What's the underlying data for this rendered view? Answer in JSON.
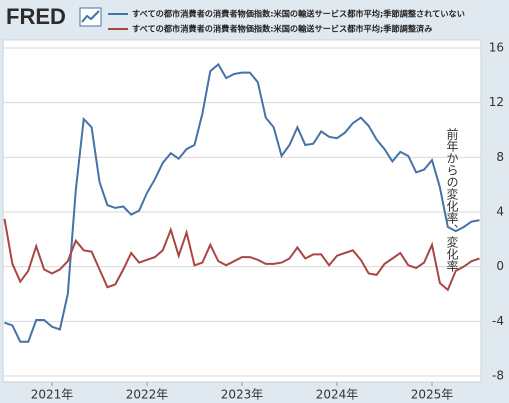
{
  "logo": "FRED",
  "chart_data": {
    "type": "line",
    "y_label": "前年からの変化率、変化率",
    "categories": [
      null,
      null,
      null,
      null,
      null,
      null,
      "2021年",
      null,
      null,
      null,
      null,
      null,
      null,
      null,
      null,
      null,
      null,
      null,
      "2022年",
      null,
      null,
      null,
      null,
      null,
      null,
      null,
      null,
      null,
      null,
      null,
      "2023年",
      null,
      null,
      null,
      null,
      null,
      null,
      null,
      null,
      null,
      null,
      null,
      "2024年",
      null,
      null,
      null,
      null,
      null,
      null,
      null,
      null,
      null,
      null,
      null,
      "2025年",
      null,
      null,
      null,
      null,
      null,
      null
    ],
    "series": [
      {
        "name": "すべての都市消費者の消費者物価指数:米国の輸送サービス都市平均;季節調整されていない",
        "color": "#4572a7",
        "values": [
          -4.1,
          -4.3,
          -5.5,
          -5.5,
          -3.9,
          -3.9,
          -4.4,
          -4.6,
          -2.0,
          5.6,
          10.8,
          10.2,
          6.2,
          4.5,
          4.3,
          4.4,
          3.8,
          4.1,
          5.4,
          6.4,
          7.6,
          8.3,
          7.9,
          8.6,
          8.9,
          11.2,
          14.3,
          14.8,
          13.8,
          14.1,
          14.2,
          14.2,
          13.5,
          10.9,
          10.2,
          8.1,
          8.9,
          10.2,
          8.9,
          9.0,
          9.9,
          9.5,
          9.4,
          9.8,
          10.5,
          10.9,
          10.3,
          9.3,
          8.6,
          7.7,
          8.4,
          8.1,
          6.9,
          7.1,
          7.8,
          5.8,
          2.9,
          2.6,
          2.9,
          3.3,
          3.4
        ]
      },
      {
        "name": "すべての都市消費者の消費者物価指数:米国の輸送サービス都市平均;季節調整済み",
        "color": "#aa4643",
        "values": [
          3.5,
          0.2,
          -1.1,
          -0.3,
          1.5,
          -0.2,
          -0.5,
          -0.2,
          0.4,
          1.9,
          1.2,
          1.1,
          -0.2,
          -1.5,
          -1.3,
          -0.2,
          1.0,
          0.3,
          0.5,
          0.7,
          1.2,
          2.7,
          0.8,
          2.5,
          0.1,
          0.3,
          1.6,
          0.4,
          0.1,
          0.4,
          0.7,
          0.7,
          0.5,
          0.2,
          0.2,
          0.3,
          0.6,
          1.4,
          0.6,
          0.9,
          0.9,
          0.1,
          0.8,
          1.0,
          1.2,
          0.5,
          -0.5,
          -0.6,
          0.2,
          0.6,
          1.0,
          0.1,
          -0.1,
          0.3,
          1.6,
          -1.2,
          -1.7,
          -0.3,
          0.0,
          0.4,
          0.6
        ]
      }
    ],
    "ylim": [
      -8,
      16
    ],
    "yticks": [
      -8,
      -4,
      0,
      4,
      8,
      12,
      16
    ],
    "grid": true
  }
}
